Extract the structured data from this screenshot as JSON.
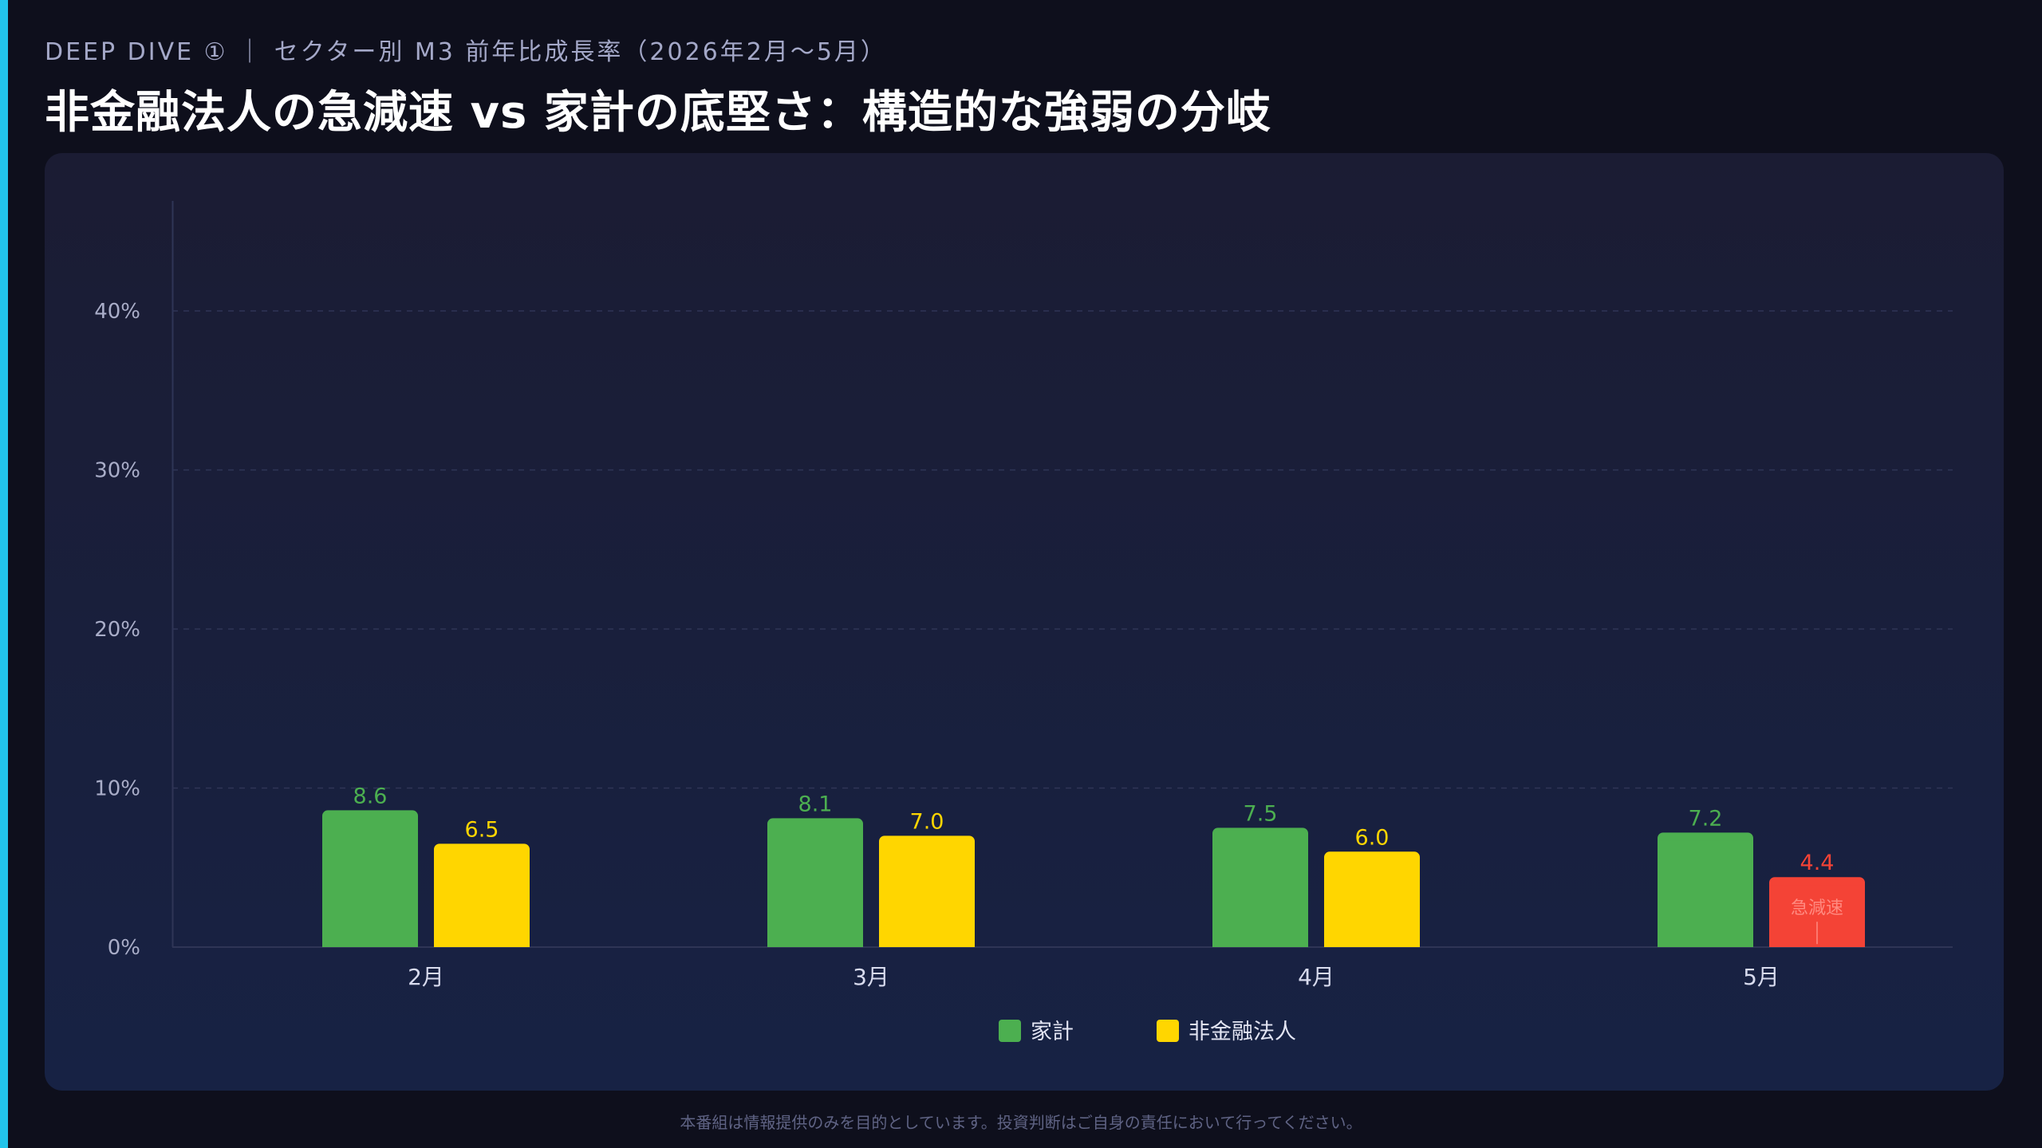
{
  "header": {
    "kicker": "DEEP DIVE ① ｜ セクター別 M3 前年比成長率（2026年2月〜5月）",
    "title": "非金融法人の急減速 vs 家計の底堅さ：構造的な強弱の分岐"
  },
  "footer": {
    "disclaimer": "本番組は情報提供のみを目的としています。投資判断はご自身の責任において行ってください。"
  },
  "colors": {
    "household": "#4caf50",
    "nfc": "#ffd600",
    "alert": "#f44336",
    "accent": "#22c4ea"
  },
  "chart_data": {
    "type": "bar",
    "categories": [
      "2月",
      "3月",
      "4月",
      "5月"
    ],
    "series": [
      {
        "name": "家計",
        "values": [
          8.6,
          8.1,
          7.5,
          7.2
        ],
        "labels": [
          "8.6",
          "8.1",
          "7.5",
          "7.2"
        ]
      },
      {
        "name": "非金融法人",
        "values": [
          6.5,
          7.0,
          6.0,
          4.4
        ],
        "labels": [
          "6.5",
          "7.0",
          "6.0",
          "4.4"
        ]
      }
    ],
    "highlight": {
      "series": 1,
      "category": 3,
      "annotation": "急減速",
      "color": "#f44336"
    },
    "ylim": [
      0,
      47
    ],
    "yticks": [
      0,
      10,
      20,
      30,
      40
    ],
    "ytick_labels": [
      "0%",
      "10%",
      "20%",
      "30%",
      "40%"
    ],
    "grid": true,
    "legend": "bottom-center"
  }
}
